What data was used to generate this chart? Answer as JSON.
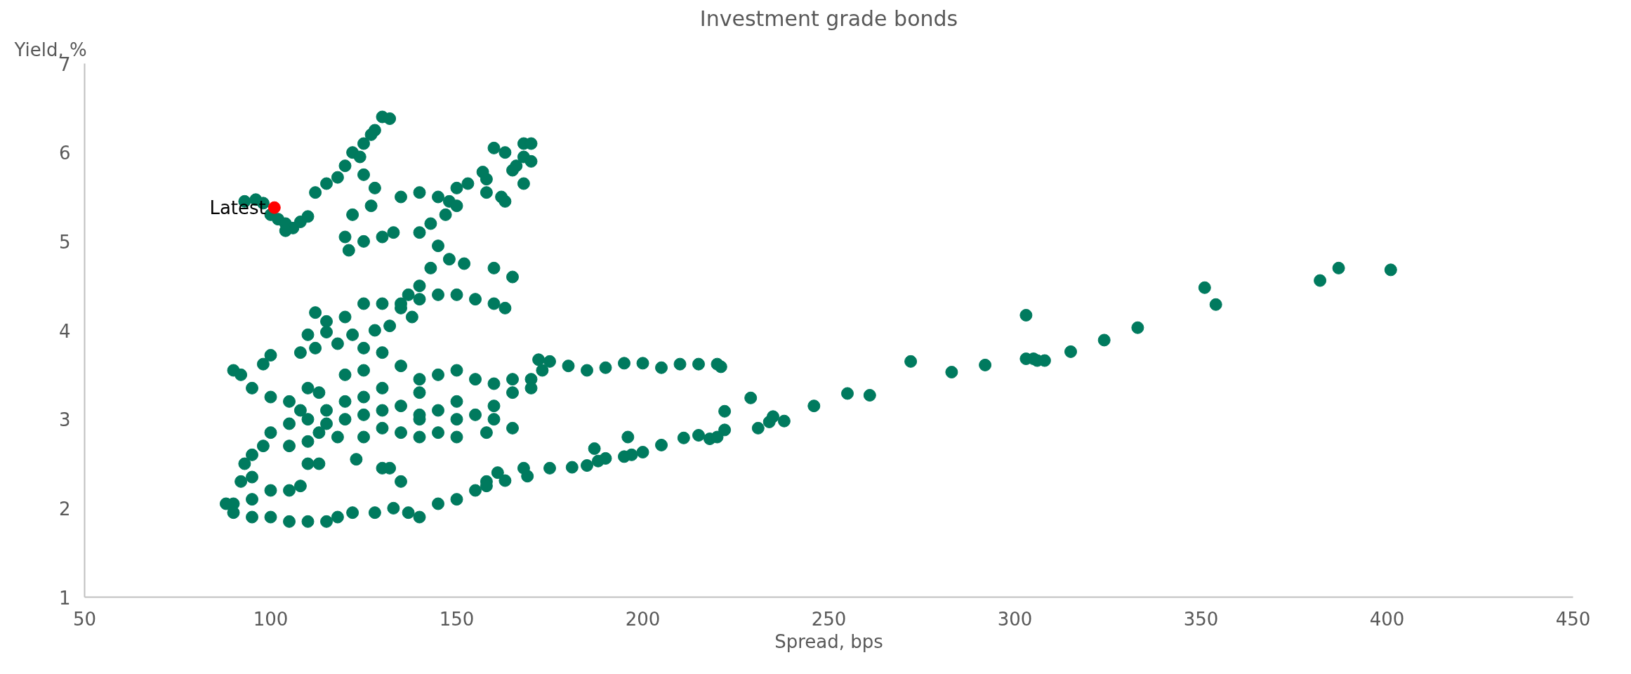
{
  "chart_data": {
    "type": "scatter",
    "title": "Investment grade bonds",
    "xlabel": "Spread, bps",
    "ylabel": "Yield, %",
    "xlim": [
      50,
      450
    ],
    "ylim": [
      1,
      7
    ],
    "xticks": [
      50,
      100,
      150,
      200,
      250,
      300,
      350,
      400,
      450
    ],
    "yticks": [
      1,
      2,
      3,
      4,
      5,
      6,
      7
    ],
    "grid": false,
    "marker": "circle",
    "series": [
      {
        "color": "#007a5e",
        "x": [
          272,
          283,
          292,
          303,
          303,
          305,
          306,
          308,
          315,
          324,
          333,
          351,
          354,
          382,
          387,
          401,
          175,
          181,
          185,
          187,
          188,
          190,
          195,
          196,
          197,
          200,
          205,
          211,
          215,
          218,
          220,
          222,
          222,
          229,
          231,
          234,
          235,
          238,
          246,
          255,
          261,
          168,
          169,
          163,
          161,
          158,
          172,
          175,
          180,
          185,
          190,
          195,
          200,
          205,
          210,
          215,
          220,
          221,
          93,
          96,
          98,
          100,
          102,
          104,
          106,
          108,
          110,
          104,
          112,
          115,
          118,
          120,
          122,
          125,
          128,
          130,
          132,
          127,
          124,
          125,
          128,
          127,
          122,
          120,
          121,
          125,
          130,
          133,
          135,
          140,
          145,
          148,
          150,
          150,
          153,
          147,
          143,
          140,
          145,
          148,
          152,
          160,
          165,
          143,
          140,
          137,
          135,
          140,
          145,
          150,
          155,
          160,
          163,
          158,
          160,
          163,
          168,
          170,
          168,
          166,
          165,
          162,
          158,
          163,
          168,
          170,
          157,
          112,
          115,
          120,
          125,
          130,
          135,
          138,
          132,
          128,
          122,
          118,
          112,
          108,
          100,
          98,
          110,
          115,
          125,
          130,
          135,
          140,
          145,
          150,
          155,
          160,
          165,
          170,
          173,
          170,
          165,
          160,
          155,
          150,
          145,
          140,
          150,
          158,
          165,
          160,
          150,
          140,
          130,
          125,
          120,
          115,
          110,
          105,
          100,
          98,
          95,
          93,
          92,
          95,
          100,
          105,
          108,
          95,
          90,
          88,
          90,
          95,
          100,
          105,
          110,
          115,
          118,
          122,
          128,
          133,
          137,
          140,
          145,
          150,
          155,
          158,
          110,
          113,
          123,
          130,
          132,
          135,
          90,
          92,
          95,
          100,
          105,
          108,
          115,
          120,
          125,
          130,
          135,
          140,
          145,
          120,
          125,
          110,
          113,
          140,
          135,
          130,
          125,
          118,
          113,
          110,
          105
        ],
        "values": [
          3.65,
          3.53,
          3.61,
          4.17,
          3.68,
          3.68,
          3.66,
          3.66,
          3.76,
          3.89,
          4.03,
          4.48,
          4.29,
          4.56,
          4.7,
          4.68,
          2.45,
          2.46,
          2.48,
          2.67,
          2.53,
          2.56,
          2.58,
          2.8,
          2.6,
          2.63,
          2.71,
          2.79,
          2.82,
          2.78,
          2.8,
          2.88,
          3.09,
          3.24,
          2.9,
          2.97,
          3.03,
          2.98,
          3.15,
          3.29,
          3.27,
          2.45,
          2.36,
          2.31,
          2.4,
          2.3,
          3.67,
          3.65,
          3.6,
          3.55,
          3.58,
          3.63,
          3.63,
          3.58,
          3.62,
          3.62,
          3.62,
          3.59,
          5.45,
          5.47,
          5.43,
          5.3,
          5.25,
          5.2,
          5.15,
          5.22,
          5.28,
          5.12,
          5.55,
          5.65,
          5.72,
          5.85,
          6.0,
          6.1,
          6.25,
          6.4,
          6.38,
          6.2,
          5.95,
          5.75,
          5.6,
          5.4,
          5.3,
          5.05,
          4.9,
          5.0,
          5.05,
          5.1,
          5.5,
          5.55,
          5.5,
          5.45,
          5.4,
          5.6,
          5.65,
          5.3,
          5.2,
          5.1,
          4.95,
          4.8,
          4.75,
          4.7,
          4.6,
          4.7,
          4.5,
          4.4,
          4.3,
          4.35,
          4.4,
          4.4,
          4.35,
          4.3,
          4.25,
          5.7,
          6.05,
          6.0,
          6.1,
          6.1,
          5.95,
          5.85,
          5.8,
          5.5,
          5.55,
          5.45,
          5.65,
          5.9,
          5.78,
          4.2,
          4.1,
          4.15,
          4.3,
          4.3,
          4.25,
          4.15,
          4.05,
          4.0,
          3.95,
          3.85,
          3.8,
          3.75,
          3.72,
          3.62,
          3.95,
          3.98,
          3.8,
          3.75,
          3.6,
          3.45,
          3.5,
          3.55,
          3.45,
          3.4,
          3.45,
          3.45,
          3.55,
          3.35,
          3.3,
          3.15,
          3.05,
          3.0,
          2.85,
          2.8,
          2.8,
          2.85,
          2.9,
          3.0,
          3.2,
          3.3,
          3.35,
          3.25,
          3.2,
          3.1,
          3.0,
          2.95,
          2.85,
          2.7,
          2.6,
          2.5,
          2.3,
          2.35,
          2.2,
          2.2,
          2.25,
          2.1,
          2.05,
          2.05,
          1.95,
          1.9,
          1.9,
          1.85,
          1.85,
          1.85,
          1.9,
          1.95,
          1.95,
          2.0,
          1.95,
          1.9,
          2.05,
          2.1,
          2.2,
          2.25,
          2.5,
          2.5,
          2.55,
          2.45,
          2.45,
          2.3,
          3.55,
          3.5,
          3.35,
          3.25,
          3.2,
          3.1,
          2.95,
          3.0,
          3.05,
          3.1,
          3.15,
          3.05,
          3.1,
          3.5,
          3.55,
          3.35,
          3.3,
          3.0,
          2.85,
          2.9,
          2.8,
          2.8,
          2.85,
          2.75,
          2.7
        ]
      },
      {
        "color": "#ff0000",
        "x": [
          101
        ],
        "values": [
          5.38
        ]
      }
    ],
    "annotations": [
      {
        "text": "Latest",
        "x": 101,
        "y": 5.38
      }
    ]
  }
}
